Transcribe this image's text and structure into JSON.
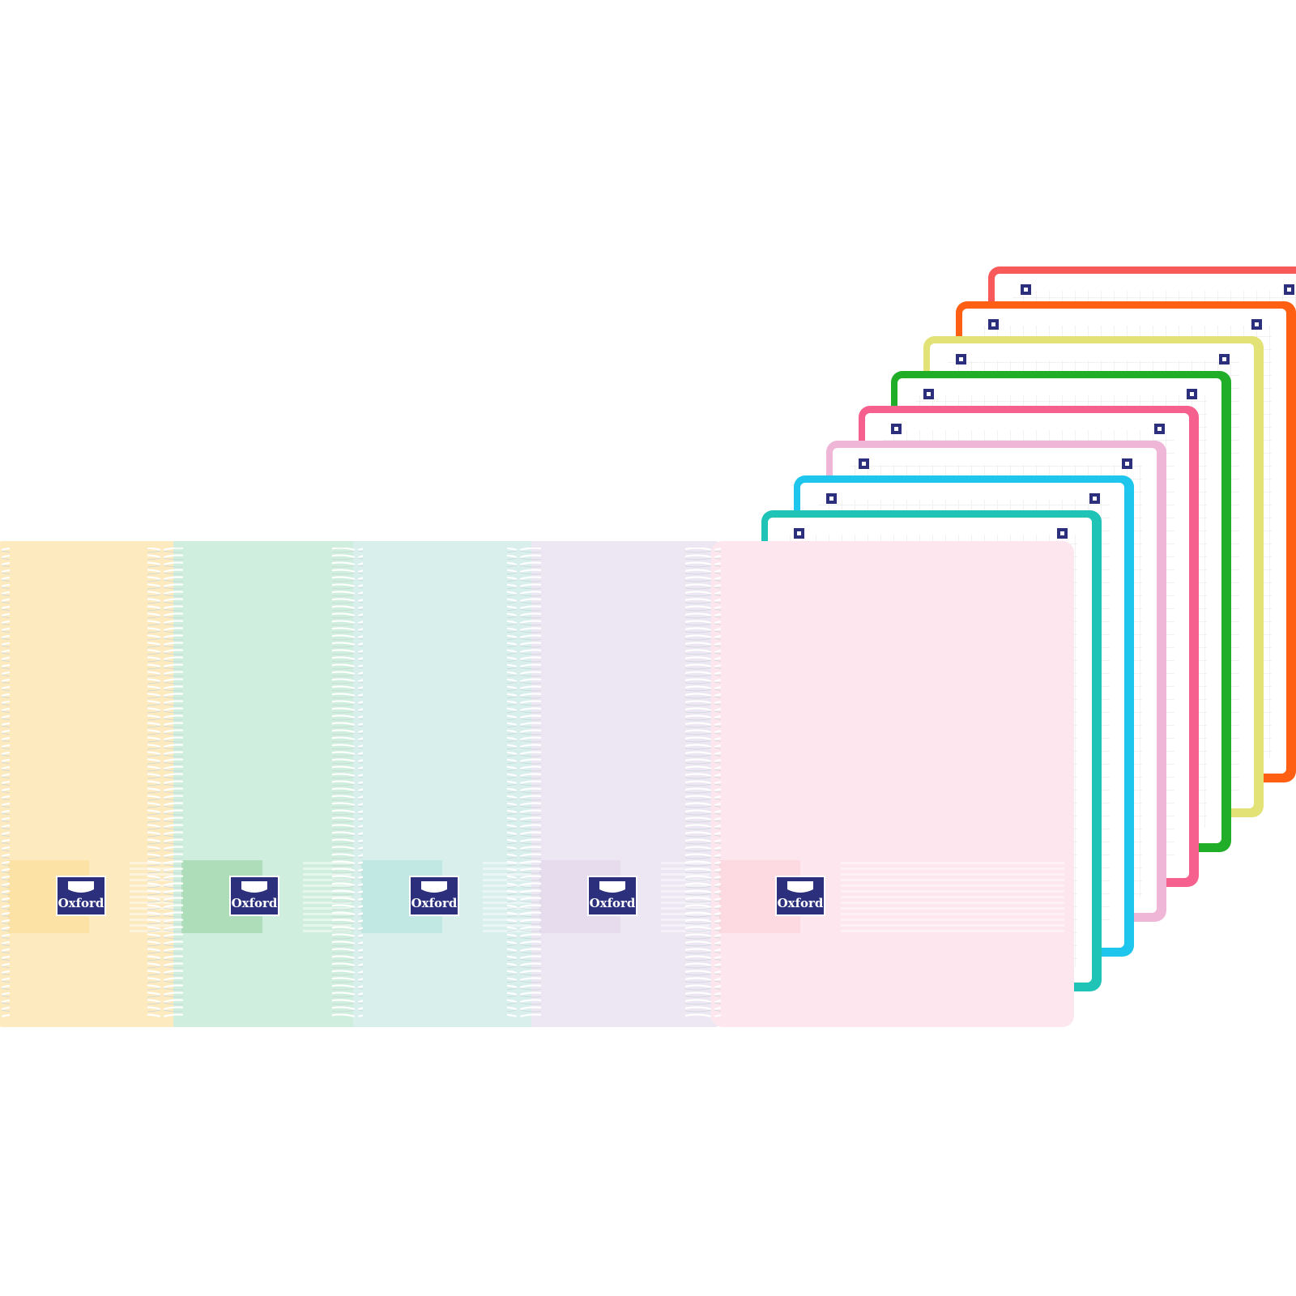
{
  "notebooks": [
    {
      "logo": "Oxford"
    },
    {
      "logo": "Oxford"
    },
    {
      "logo": "Oxford"
    },
    {
      "logo": "Oxford"
    },
    {
      "logo": "Oxford"
    }
  ]
}
